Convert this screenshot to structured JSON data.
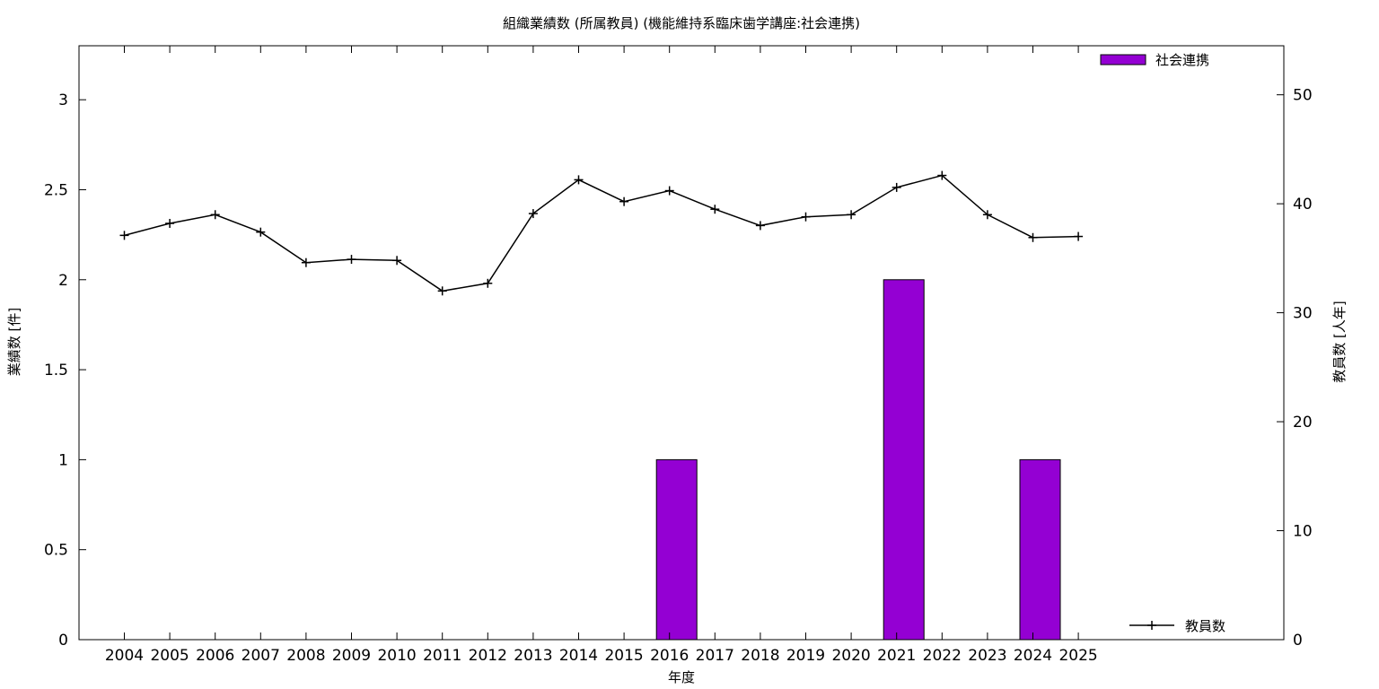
{
  "colors": {
    "bar": "#9400d3",
    "line": "#000000",
    "frame": "#000000"
  },
  "chart_data": {
    "type": "bar+line",
    "title": "組織業績数 (所属教員) (機能維持系臨床歯学講座:社会連携)",
    "xlabel": "年度",
    "ylabel": "業績数 [件]",
    "y2label": "教員数 [人年]",
    "categories": [
      "2004",
      "2005",
      "2006",
      "2007",
      "2008",
      "2009",
      "2010",
      "2011",
      "2012",
      "2013",
      "2014",
      "2015",
      "2016",
      "2017",
      "2018",
      "2019",
      "2020",
      "2021",
      "2022",
      "2023",
      "2024",
      "2025"
    ],
    "ylim": [
      0,
      3.3
    ],
    "y2lim": [
      0,
      54.5
    ],
    "yticks": [
      "0",
      "0.5",
      "1",
      "1.5",
      "2",
      "2.5",
      "3"
    ],
    "y2ticks": [
      "0",
      "10",
      "20",
      "30",
      "40",
      "50"
    ],
    "series": [
      {
        "name": "社会連携",
        "type": "bar",
        "axis": "left",
        "values": [
          0,
          0,
          0,
          0,
          0,
          0,
          0,
          0,
          0,
          0,
          0,
          0,
          1,
          0,
          0,
          0,
          0,
          2,
          0,
          0,
          1,
          0
        ]
      },
      {
        "name": "教員数",
        "type": "line",
        "axis": "right",
        "values": [
          37.1,
          38.2,
          39.0,
          37.4,
          34.6,
          34.9,
          34.8,
          32.0,
          32.7,
          39.1,
          42.2,
          40.2,
          41.2,
          39.5,
          38.0,
          38.8,
          39.0,
          41.5,
          42.6,
          39.0,
          36.9,
          37.0
        ]
      }
    ],
    "legend": {
      "bar_entry": "社会連携",
      "line_entry": "教員数"
    },
    "grid": false
  }
}
